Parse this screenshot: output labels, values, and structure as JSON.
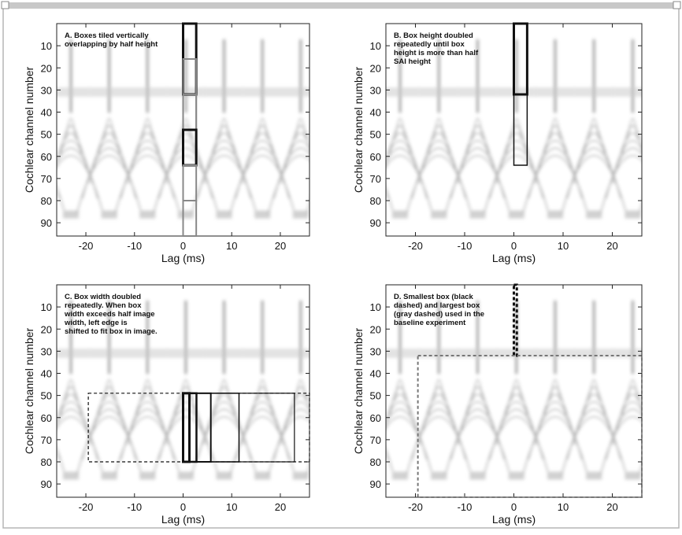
{
  "chart_data": [
    {
      "type": "box-overlay",
      "annotation": [
        "A. Boxes tiled vertically",
        "overlapping by half height"
      ],
      "xlabel": "Lag (ms)",
      "ylabel": "Cochlear channel number",
      "xlim": [
        -26,
        26
      ],
      "ylim": [
        0,
        96
      ],
      "xticks": [
        -20,
        -10,
        0,
        10,
        20
      ],
      "yticks": [
        10,
        20,
        30,
        40,
        50,
        60,
        70,
        80,
        90
      ],
      "y_inverted": true,
      "boxes": [
        {
          "x": [
            0,
            2.7
          ],
          "y": [
            0,
            32
          ],
          "color": "#111111",
          "dash": false,
          "width": 3
        },
        {
          "x": [
            0,
            2.7
          ],
          "y": [
            16,
            48
          ],
          "color": "#888888",
          "dash": false,
          "width": 2
        },
        {
          "x": [
            0,
            2.7
          ],
          "y": [
            32,
            64
          ],
          "color": "#888888",
          "dash": false,
          "width": 2
        },
        {
          "x": [
            0,
            2.7
          ],
          "y": [
            48,
            64
          ],
          "color": "#111111",
          "dash": false,
          "width": 3
        },
        {
          "x": [
            0,
            2.7
          ],
          "y": [
            64,
            80
          ],
          "color": "#888888",
          "dash": false,
          "width": 2
        },
        {
          "x": [
            0,
            2.7
          ],
          "y": [
            80,
            96
          ],
          "color": "#888888",
          "dash": false,
          "width": 2
        }
      ]
    },
    {
      "type": "box-overlay",
      "annotation": [
        "B. Box height doubled",
        "repeatedly until box",
        "height is more than half",
        "SAI height"
      ],
      "xlabel": "Lag (ms)",
      "ylabel": "Cochlear channel number",
      "xlim": [
        -26,
        26
      ],
      "ylim": [
        0,
        96
      ],
      "xticks": [
        -20,
        -10,
        0,
        10,
        20
      ],
      "yticks": [
        10,
        20,
        30,
        40,
        50,
        60,
        70,
        80,
        90
      ],
      "y_inverted": true,
      "boxes": [
        {
          "x": [
            0,
            2.7
          ],
          "y": [
            0,
            32
          ],
          "color": "#111111",
          "dash": false,
          "width": 3
        },
        {
          "x": [
            0,
            2.7
          ],
          "y": [
            0,
            64
          ],
          "color": "#111111",
          "dash": false,
          "width": 1.5
        }
      ]
    },
    {
      "type": "box-overlay",
      "annotation": [
        "C. Box width doubled",
        "repeatedly. When box",
        "width exceeds half image",
        "width, left edge is",
        "shifted to fit box in image."
      ],
      "xlabel": "Lag (ms)",
      "ylabel": "Cochlear channel number",
      "xlim": [
        -26,
        26
      ],
      "ylim": [
        0,
        96
      ],
      "xticks": [
        -20,
        -10,
        0,
        10,
        20
      ],
      "yticks": [
        10,
        20,
        30,
        40,
        50,
        60,
        70,
        80,
        90
      ],
      "y_inverted": true,
      "boxes": [
        {
          "x": [
            0,
            1.3
          ],
          "y": [
            49,
            80
          ],
          "color": "#111111",
          "dash": false,
          "width": 3
        },
        {
          "x": [
            0,
            2.75
          ],
          "y": [
            49,
            80
          ],
          "color": "#111111",
          "dash": false,
          "width": 2.5
        },
        {
          "x": [
            0,
            5.7
          ],
          "y": [
            49,
            80
          ],
          "color": "#111111",
          "dash": false,
          "width": 2
        },
        {
          "x": [
            0,
            11.5
          ],
          "y": [
            49,
            80
          ],
          "color": "#111111",
          "dash": false,
          "width": 1.5
        },
        {
          "x": [
            0,
            22.9
          ],
          "y": [
            49,
            80
          ],
          "color": "#111111",
          "dash": false,
          "width": 1.2
        },
        {
          "x": [
            -19.5,
            26
          ],
          "y": [
            49,
            80
          ],
          "color": "#111111",
          "dash": true,
          "width": 1.2
        }
      ]
    },
    {
      "type": "box-overlay",
      "annotation": [
        "D. Smallest box (black",
        "dashed) and largest box",
        "(gray dashed) used in the",
        "baseline experiment"
      ],
      "xlabel": "Lag (ms)",
      "ylabel": "Cochlear channel number",
      "xlim": [
        -26,
        26
      ],
      "ylim": [
        0,
        96
      ],
      "xticks": [
        -20,
        -10,
        0,
        10,
        20
      ],
      "yticks": [
        10,
        20,
        30,
        40,
        50,
        60,
        70,
        80,
        90
      ],
      "y_inverted": true,
      "boxes": [
        {
          "x": [
            0,
            0.6
          ],
          "y": [
            0,
            32
          ],
          "color": "#111111",
          "dash": true,
          "width": 3
        },
        {
          "x": [
            -19.5,
            26
          ],
          "y": [
            32,
            96
          ],
          "color": "#777777",
          "dash": true,
          "width": 2
        }
      ]
    }
  ]
}
